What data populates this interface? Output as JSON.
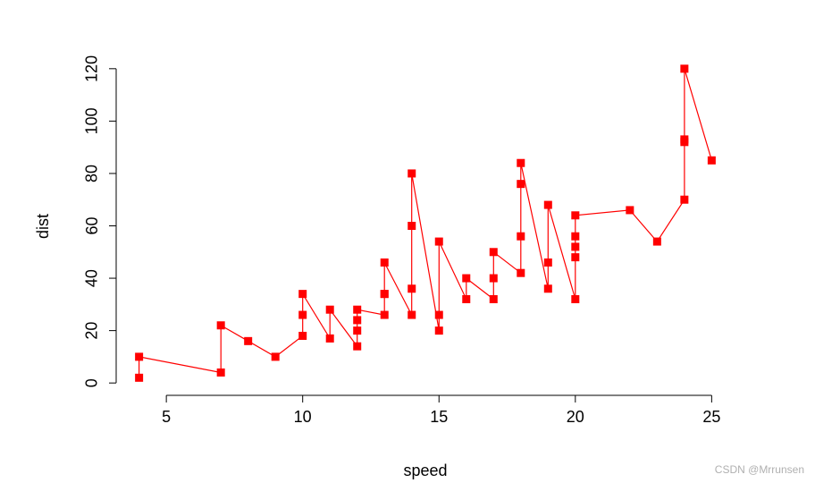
{
  "chart_data": {
    "type": "line",
    "xlabel": "speed",
    "ylabel": "dist",
    "xlim": [
      3.16,
      25.84
    ],
    "ylim": [
      -4.72,
      124.72
    ],
    "xticks": [
      5,
      10,
      15,
      20,
      25
    ],
    "yticks": [
      0,
      20,
      40,
      60,
      80,
      100,
      120
    ],
    "grid": false,
    "series": [
      {
        "color": "#ff0000",
        "marker": "square",
        "x": [
          4,
          4,
          7,
          7,
          8,
          9,
          10,
          10,
          10,
          11,
          11,
          12,
          12,
          12,
          12,
          13,
          13,
          13,
          13,
          14,
          14,
          14,
          14,
          15,
          15,
          15,
          16,
          16,
          17,
          17,
          17,
          18,
          18,
          18,
          18,
          19,
          19,
          19,
          20,
          20,
          20,
          20,
          20,
          22,
          23,
          24,
          24,
          24,
          24,
          25
        ],
        "y": [
          2,
          10,
          4,
          22,
          16,
          10,
          18,
          26,
          34,
          17,
          28,
          14,
          20,
          24,
          28,
          26,
          34,
          34,
          46,
          26,
          36,
          60,
          80,
          20,
          26,
          54,
          32,
          40,
          32,
          40,
          50,
          42,
          56,
          76,
          84,
          36,
          46,
          68,
          32,
          48,
          52,
          56,
          64,
          66,
          54,
          70,
          92,
          93,
          120,
          85
        ]
      }
    ]
  },
  "watermark": "CSDN @Mrrunsen"
}
